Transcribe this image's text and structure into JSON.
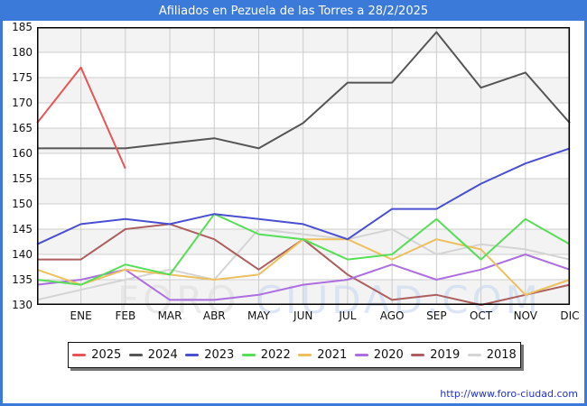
{
  "window": {
    "title": "Afiliados en Pezuela de las Torres a 28/2/2025"
  },
  "footer": {
    "url_label": "http://www.foro-ciudad.com"
  },
  "watermark": {
    "part1": "FORO ",
    "part2": "CIUDAD.COM"
  },
  "colors": {
    "frame_blue": "#3b7ad8",
    "axis": "#000000",
    "grid": "#cccccc",
    "stripe": "#f3f3f3",
    "plot_bg": "#ffffff",
    "footer_link": "#2233cc",
    "watermark_gray": "#dedede",
    "watermark_blue": "#c9d7ef"
  },
  "chart_data": {
    "type": "line",
    "title": "Afiliados en Pezuela de las Torres a 28/2/2025",
    "xlabel": "",
    "ylabel": "",
    "months": [
      "ENE",
      "FEB",
      "MAR",
      "ABR",
      "MAY",
      "JUN",
      "JUL",
      "AGO",
      "SEP",
      "OCT",
      "NOV",
      "DIC"
    ],
    "y_axis": {
      "min": 130,
      "max": 185,
      "tick_step": 5,
      "ticks": [
        185,
        180,
        175,
        170,
        165,
        160,
        155,
        150,
        145,
        140,
        135,
        130
      ]
    },
    "grid": true,
    "legend_position": "bottom",
    "start_point_note": "each line starts at the left plot edge with the previous December value (dec_prev)",
    "series": [
      {
        "name": "2025",
        "color": "#e85555",
        "dec_prev": 166,
        "values": [
          177,
          157,
          null,
          null,
          null,
          null,
          null,
          null,
          null,
          null,
          null,
          null
        ]
      },
      {
        "name": "2024",
        "color": "#555555",
        "dec_prev": 161,
        "values": [
          161,
          161,
          162,
          163,
          161,
          166,
          174,
          174,
          184,
          173,
          176,
          166
        ]
      },
      {
        "name": "2023",
        "color": "#4a4fd0",
        "dec_prev": 142,
        "values": [
          146,
          147,
          146,
          148,
          147,
          146,
          143,
          149,
          149,
          154,
          158,
          161
        ]
      },
      {
        "name": "2022",
        "color": "#57dd57",
        "dec_prev": 135,
        "values": [
          134,
          138,
          136,
          148,
          144,
          143,
          139,
          140,
          147,
          139,
          147,
          142
        ]
      },
      {
        "name": "2021",
        "color": "#ecc05e",
        "dec_prev": 137,
        "values": [
          134,
          137,
          136,
          135,
          136,
          143,
          143,
          139,
          143,
          141,
          132,
          135
        ]
      },
      {
        "name": "2020",
        "color": "#ad6fe0",
        "dec_prev": 134,
        "values": [
          135,
          137,
          131,
          131,
          132,
          134,
          135,
          138,
          135,
          137,
          140,
          137
        ]
      },
      {
        "name": "2019",
        "color": "#ad5f5f",
        "dec_prev": 139,
        "values": [
          139,
          145,
          146,
          143,
          137,
          143,
          136,
          131,
          132,
          130,
          132,
          134
        ]
      },
      {
        "name": "2018",
        "color": "#d4d4d4",
        "dec_prev": 131,
        "values": [
          133,
          135,
          137,
          135,
          145,
          144,
          143,
          145,
          140,
          142,
          141,
          139
        ]
      }
    ]
  }
}
